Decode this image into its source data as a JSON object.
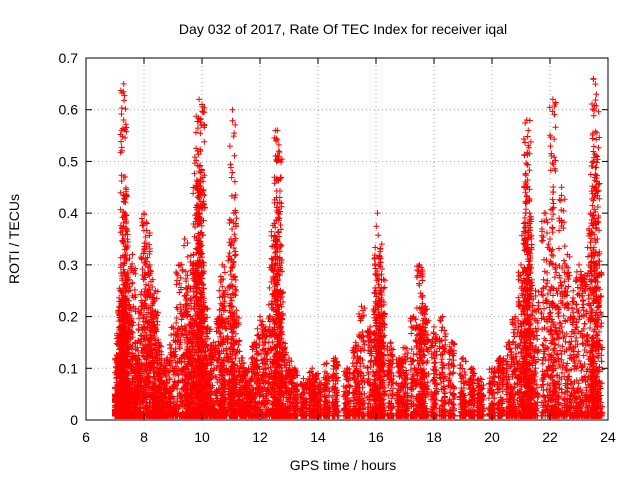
{
  "chart_data": {
    "type": "scatter",
    "title": "Day 032 of 2017, Rate Of TEC Index for receiver iqal",
    "xlabel": "GPS time / hours",
    "ylabel": "ROTI / TECUs",
    "xlim": [
      6,
      24
    ],
    "ylim": [
      0,
      0.7
    ],
    "grid": true,
    "marker": "+",
    "marker_color": "#ff0000",
    "x_ticks": [
      6,
      8,
      10,
      12,
      14,
      16,
      18,
      20,
      22,
      24
    ],
    "y_ticks": [
      0,
      0.1,
      0.2,
      0.3,
      0.4,
      0.5,
      0.6,
      0.7
    ],
    "x_tick_labels": [
      "6",
      "8",
      "10",
      "12",
      "14",
      "16",
      "18",
      "20",
      "22",
      "24"
    ],
    "y_tick_labels": [
      "0",
      "0.1",
      "0.2",
      "0.3",
      "0.4",
      "0.5",
      "0.6",
      "0.7"
    ],
    "series": [
      {
        "name": "ROTI",
        "x": [
          7.0,
          7.1,
          7.15,
          7.2,
          7.25,
          7.3,
          7.35,
          7.4,
          7.5,
          7.6,
          7.7,
          7.8,
          7.9,
          8.0,
          8.1,
          8.2,
          8.3,
          8.4,
          8.5,
          8.6,
          8.8,
          9.0,
          9.2,
          9.4,
          9.5,
          9.6,
          9.7,
          9.8,
          9.85,
          9.9,
          10.0,
          10.1,
          10.2,
          10.4,
          10.6,
          10.7,
          10.8,
          11.0,
          11.1,
          11.2,
          11.4,
          11.6,
          11.8,
          12.0,
          12.2,
          12.4,
          12.5,
          12.6,
          12.7,
          12.8,
          13.0,
          13.2,
          13.5,
          13.8,
          14.0,
          14.3,
          14.6,
          15.0,
          15.3,
          15.5,
          15.8,
          16.0,
          16.1,
          16.2,
          16.5,
          16.8,
          17.0,
          17.3,
          17.5,
          17.7,
          18.0,
          18.3,
          18.6,
          19.0,
          19.3,
          19.6,
          20.0,
          20.3,
          20.6,
          20.8,
          21.0,
          21.1,
          21.2,
          21.3,
          21.5,
          21.8,
          22.0,
          22.2,
          22.4,
          22.6,
          22.8,
          23.0,
          23.2,
          23.4,
          23.5,
          23.6,
          23.7,
          7.3,
          7.35,
          9.9,
          10.0,
          11.05,
          12.6,
          12.65,
          21.2,
          21.25,
          22.1,
          23.5,
          23.6,
          7.3,
          9.95,
          16.05,
          16.2,
          17.6,
          21.3
        ],
        "y": [
          0.05,
          0.12,
          0.22,
          0.3,
          0.25,
          0.18,
          0.4,
          0.28,
          0.2,
          0.32,
          0.15,
          0.1,
          0.22,
          0.4,
          0.38,
          0.3,
          0.2,
          0.25,
          0.15,
          0.1,
          0.12,
          0.18,
          0.3,
          0.35,
          0.28,
          0.2,
          0.32,
          0.45,
          0.52,
          0.4,
          0.3,
          0.22,
          0.18,
          0.15,
          0.2,
          0.3,
          0.25,
          0.35,
          0.4,
          0.2,
          0.12,
          0.1,
          0.15,
          0.2,
          0.18,
          0.3,
          0.38,
          0.42,
          0.25,
          0.15,
          0.12,
          0.1,
          0.08,
          0.1,
          0.09,
          0.11,
          0.12,
          0.1,
          0.15,
          0.22,
          0.18,
          0.25,
          0.3,
          0.2,
          0.15,
          0.12,
          0.14,
          0.2,
          0.3,
          0.22,
          0.18,
          0.2,
          0.15,
          0.12,
          0.1,
          0.08,
          0.1,
          0.12,
          0.15,
          0.2,
          0.3,
          0.38,
          0.45,
          0.3,
          0.25,
          0.4,
          0.35,
          0.3,
          0.45,
          0.32,
          0.25,
          0.3,
          0.28,
          0.4,
          0.5,
          0.45,
          0.3,
          0.58,
          0.47,
          0.62,
          0.61,
          0.6,
          0.56,
          0.52,
          0.58,
          0.56,
          0.62,
          0.66,
          0.63,
          0.65,
          0.52,
          0.4,
          0.34,
          0.29,
          0.38
        ]
      }
    ]
  }
}
